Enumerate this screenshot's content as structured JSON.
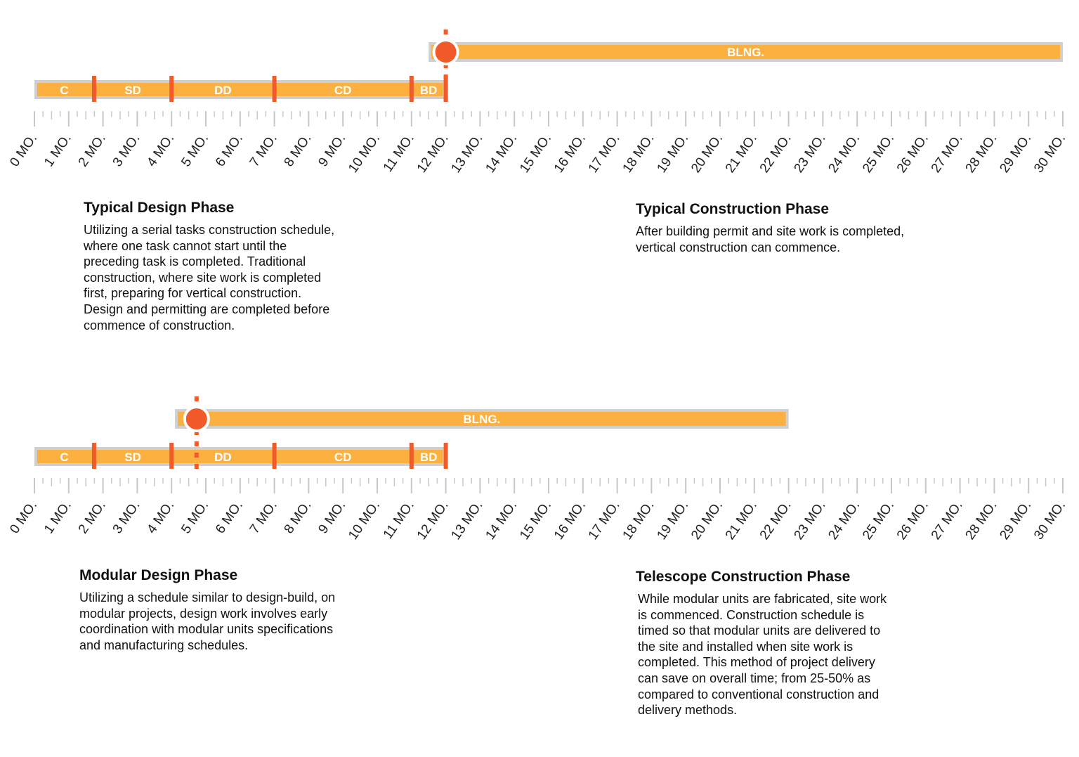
{
  "colors": {
    "bar": "#fbb040",
    "outline": "#cfcfcf",
    "marker": "#f15a29",
    "tick": "#c8c8c8"
  },
  "axis": {
    "min": 0,
    "max": 30,
    "unit_suffix": " MO."
  },
  "timelines": [
    {
      "phases": [
        {
          "label": "C",
          "start": 0,
          "end": 1.74
        },
        {
          "label": "SD",
          "start": 1.74,
          "end": 4
        },
        {
          "label": "DD",
          "start": 4,
          "end": 7
        },
        {
          "label": "CD",
          "start": 7,
          "end": 11
        },
        {
          "label": "BD",
          "start": 11,
          "end": 12
        }
      ],
      "building": {
        "label": "BLNG.",
        "start": 11.5,
        "end": 30
      },
      "milestone": 12
    },
    {
      "phases": [
        {
          "label": "C",
          "start": 0,
          "end": 1.74
        },
        {
          "label": "SD",
          "start": 1.74,
          "end": 4
        },
        {
          "label": "DD",
          "start": 4,
          "end": 7
        },
        {
          "label": "CD",
          "start": 7,
          "end": 11
        },
        {
          "label": "BD",
          "start": 11,
          "end": 12
        }
      ],
      "building": {
        "label": "BLNG.",
        "start": 4.1,
        "end": 22
      },
      "milestone": 4.73
    }
  ],
  "blocks": [
    {
      "title": "Typical Design Phase",
      "lines": [
        "Utilizing a serial tasks construction schedule,",
        "where one task cannot start until the",
        "preceding task is completed. Traditional",
        "construction, where site work is completed",
        "first,  preparing for vertical construction.",
        "Design and permitting are completed before",
        "commence of construction."
      ]
    },
    {
      "title": "Typical Construction Phase",
      "lines": [
        "After building permit and site work is completed,",
        "vertical construction can commence."
      ]
    },
    {
      "title": "Modular Design Phase",
      "lines": [
        "Utilizing a schedule similar to design-build, on",
        "modular projects, design work involves early",
        "coordination with modular units specifications",
        "and manufacturing schedules."
      ]
    },
    {
      "title": "Telescope Construction Phase",
      "lines": [
        "While modular units are fabricated, site work",
        "is commenced. Construction schedule is",
        "timed so that modular units are delivered to",
        "the site and installed when site work is",
        "completed. This method of project delivery",
        "can save on overall time; from 25-50% as",
        "compared to conventional construction and",
        "delivery methods."
      ]
    }
  ]
}
